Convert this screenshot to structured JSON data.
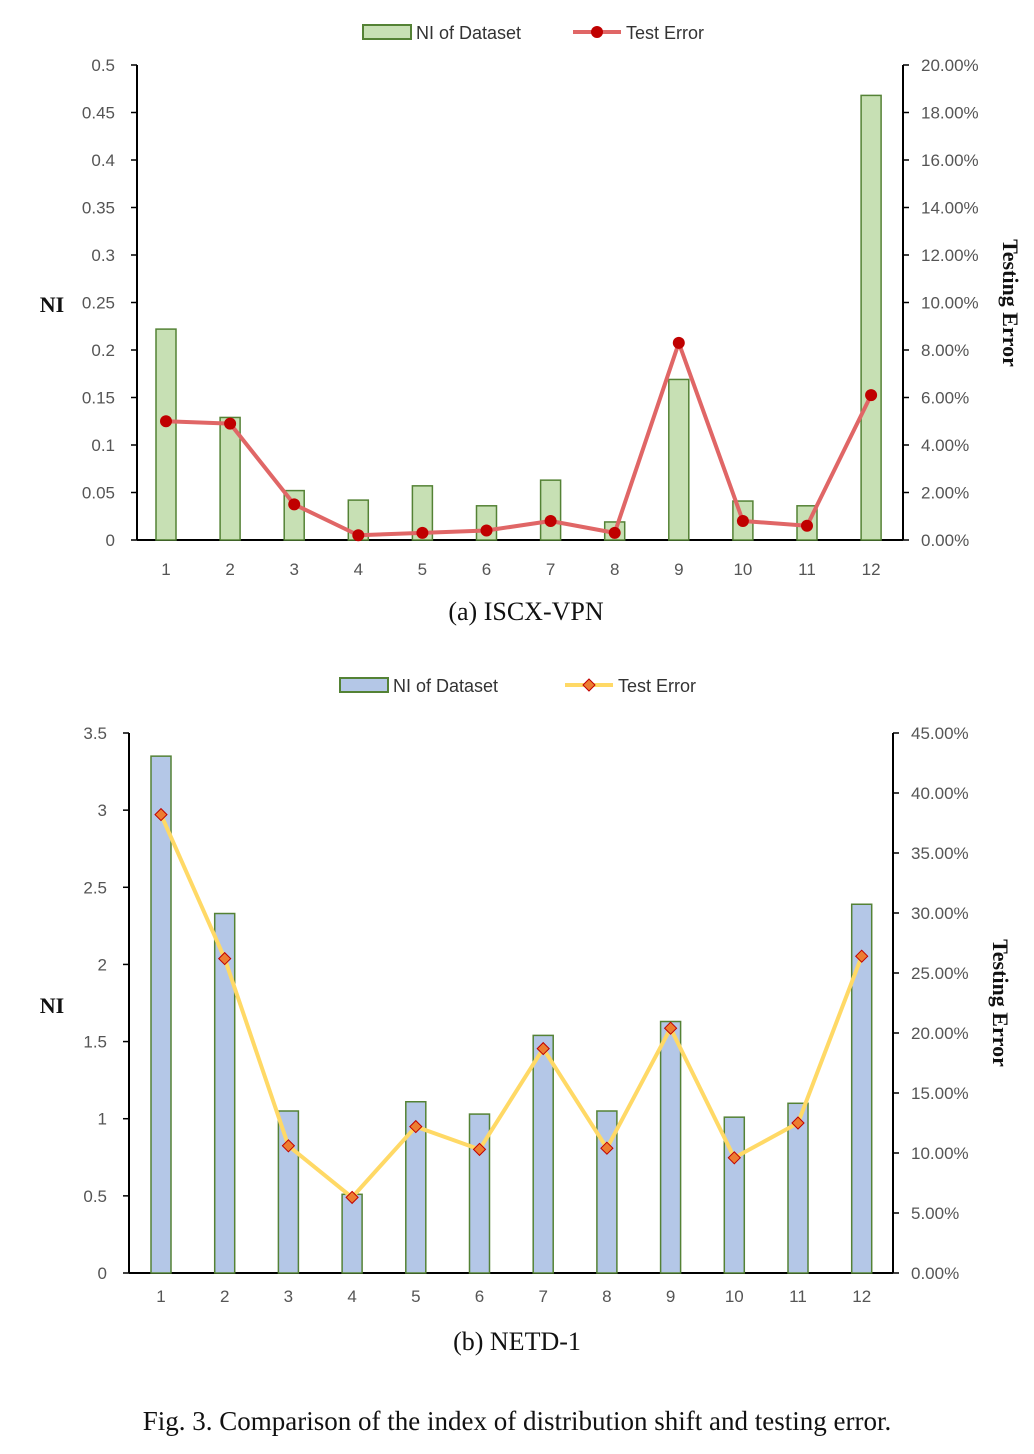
{
  "figure_caption": "Fig. 3.  Comparison of the index of distribution shift and testing error.",
  "chart_data": [
    {
      "type": "bar",
      "subcaption": "(a) ISCX-VPN",
      "categories": [
        "1",
        "2",
        "3",
        "4",
        "5",
        "6",
        "7",
        "8",
        "9",
        "10",
        "11",
        "12"
      ],
      "series": [
        {
          "name": "NI of Dataset",
          "kind": "bar",
          "axis": "left",
          "color": "#c7e0b4",
          "stroke": "#548235",
          "values": [
            0.222,
            0.129,
            0.052,
            0.042,
            0.057,
            0.036,
            0.063,
            0.019,
            0.169,
            0.041,
            0.036,
            0.468
          ]
        },
        {
          "name": "Test Error",
          "kind": "line",
          "axis": "right",
          "color": "#e06666",
          "marker_color": "#c00000",
          "marker": "circle",
          "values": [
            5.0,
            4.9,
            1.5,
            0.2,
            0.3,
            0.4,
            0.8,
            0.3,
            8.3,
            0.8,
            0.6,
            6.1
          ]
        }
      ],
      "ylabel": "NI",
      "y2label": "Testing Error",
      "ylim": [
        0,
        0.5
      ],
      "y_ticks": [
        "0",
        "0.05",
        "0.1",
        "0.15",
        "0.2",
        "0.25",
        "0.3",
        "0.35",
        "0.4",
        "0.45",
        "0.5"
      ],
      "y2lim": [
        0,
        20
      ],
      "y2_ticks": [
        "0.00%",
        "2.00%",
        "4.00%",
        "6.00%",
        "8.00%",
        "10.00%",
        "12.00%",
        "14.00%",
        "16.00%",
        "18.00%",
        "20.00%"
      ],
      "legend": "top-center",
      "grid": false
    },
    {
      "type": "bar",
      "subcaption": "(b) NETD-1",
      "categories": [
        "1",
        "2",
        "3",
        "4",
        "5",
        "6",
        "7",
        "8",
        "9",
        "10",
        "11",
        "12"
      ],
      "series": [
        {
          "name": "NI of Dataset",
          "kind": "bar",
          "axis": "left",
          "color": "#b4c7e7",
          "stroke": "#548235",
          "values": [
            3.35,
            2.33,
            1.05,
            0.51,
            1.11,
            1.03,
            1.54,
            1.05,
            1.63,
            1.01,
            1.1,
            2.39
          ]
        },
        {
          "name": "Test Error",
          "kind": "line",
          "axis": "right",
          "color": "#ffd966",
          "marker_color": "#ed7d31",
          "marker": "diamond",
          "values": [
            38.2,
            26.2,
            10.6,
            6.3,
            12.2,
            10.3,
            18.7,
            10.4,
            20.4,
            9.6,
            12.5,
            26.4
          ]
        }
      ],
      "ylabel": "NI",
      "y2label": "Testing Error",
      "ylim": [
        0,
        3.5
      ],
      "y_ticks": [
        "0",
        "0.5",
        "1",
        "1.5",
        "2",
        "2.5",
        "3",
        "3.5"
      ],
      "y2lim": [
        0,
        45
      ],
      "y2_ticks": [
        "0.00%",
        "5.00%",
        "10.00%",
        "15.00%",
        "20.00%",
        "25.00%",
        "30.00%",
        "35.00%",
        "40.00%",
        "45.00%"
      ],
      "legend": "top-center",
      "grid": false
    }
  ]
}
